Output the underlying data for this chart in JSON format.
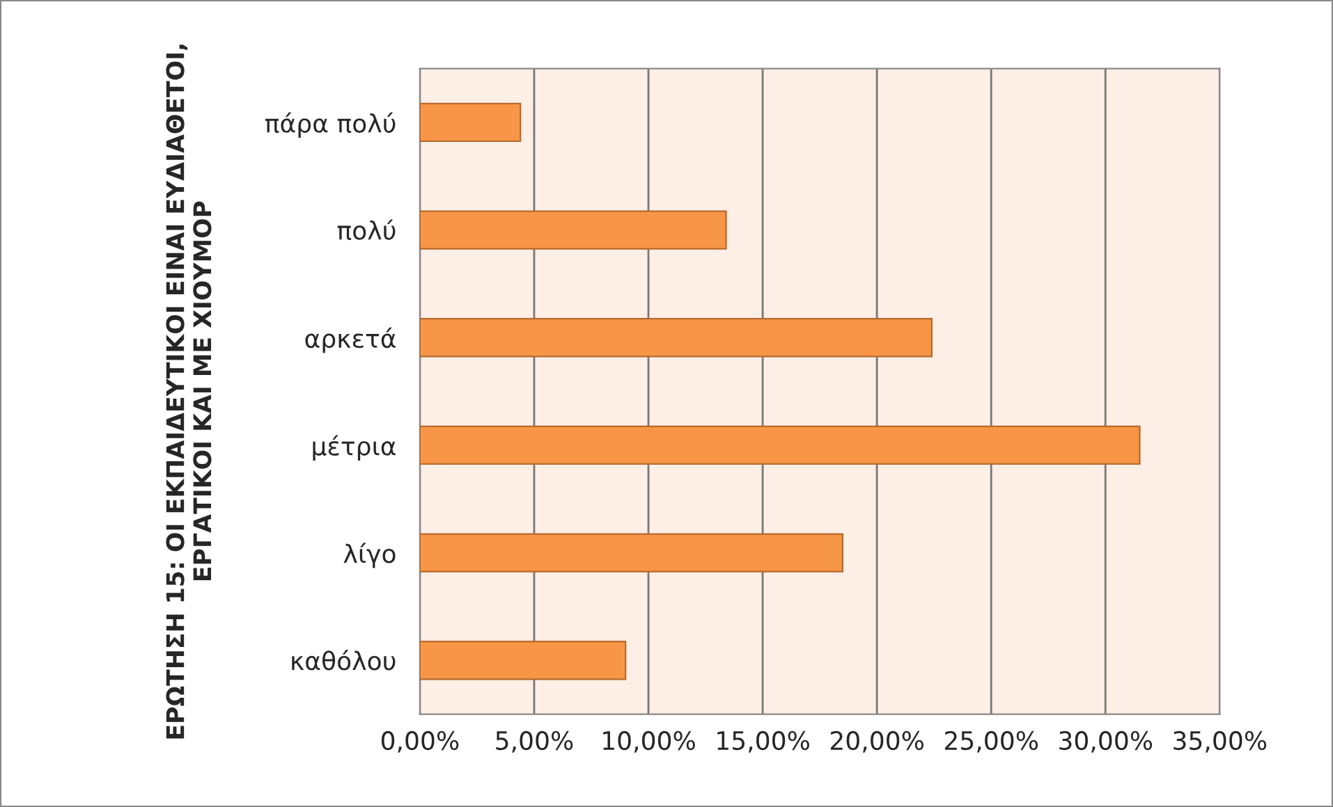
{
  "chart_data": {
    "type": "bar",
    "orientation": "horizontal",
    "ylabel": "ΕΡΩΤΗΣΗ 15: ΟΙ ΕΚΠΑΙΔΕΥΤΙΚΟΙ ΕΙΝΑΙ ΕΥΔΙΑΘΕΤΟΙ, ΕΡΓΑΤΙΚΟΙ ΚΑΙ ΜΕ ΧΙΟΥΜΟΡ",
    "categories": [
      "πάρα πολύ",
      "πολύ",
      "αρκετά",
      "μέτρια",
      "λίγο",
      "καθόλου"
    ],
    "values": [
      4.4,
      13.4,
      22.4,
      31.5,
      18.5,
      9.0
    ],
    "color": "#f79646",
    "xlim": [
      0,
      35
    ],
    "xticks": [
      {
        "value": 0,
        "label": "0,00%"
      },
      {
        "value": 5,
        "label": "5,00%"
      },
      {
        "value": 10,
        "label": "10,00%"
      },
      {
        "value": 15,
        "label": "15,00%"
      },
      {
        "value": 20,
        "label": "20,00%"
      },
      {
        "value": 25,
        "label": "25,00%"
      },
      {
        "value": 30,
        "label": "30,00%"
      },
      {
        "value": 35,
        "label": "35,00%"
      }
    ],
    "grid": "x",
    "legend": false
  }
}
